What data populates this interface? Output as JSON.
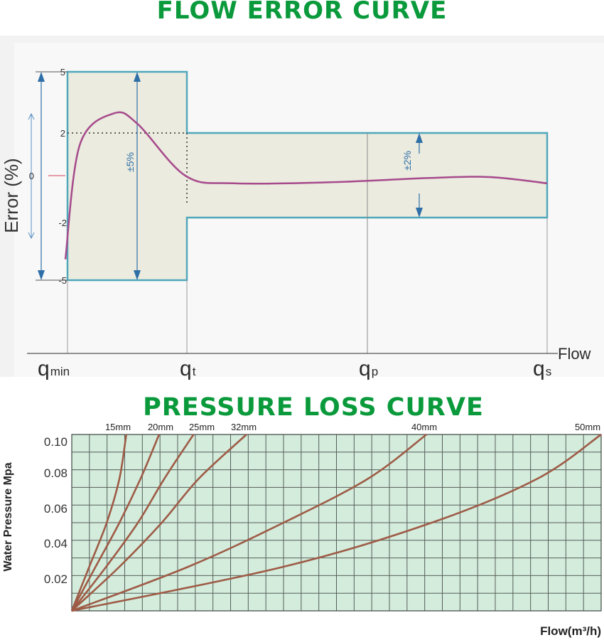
{
  "chart_data": [
    {
      "type": "line",
      "title": "FLOW ERROR CURVE",
      "ylabel": "Error (%)",
      "xlabel": "Flow",
      "ylim": [
        -5,
        5
      ],
      "y_ticks": [
        "5",
        "2",
        "0",
        "-2",
        "-5"
      ],
      "x_ticks": [
        {
          "base": "q",
          "sub": "min"
        },
        {
          "base": "q",
          "sub": "t"
        },
        {
          "base": "q",
          "sub": "p"
        },
        {
          "base": "q",
          "sub": "s"
        }
      ],
      "tolerance_zones": [
        {
          "label": "±5%",
          "from": "qmin",
          "to": "qt",
          "limits": [
            -5,
            5
          ]
        },
        {
          "label": "±2%",
          "from": "qt",
          "to": "qs",
          "limits": [
            -2,
            2
          ]
        }
      ],
      "series": [
        {
          "values": [
            {
              "x": 0.0,
              "y": -4.0
            },
            {
              "x": 0.03,
              "y": 1.5
            },
            {
              "x": 0.1,
              "y": 3.0
            },
            {
              "x": 0.15,
              "y": 2.5
            },
            {
              "x": 0.25,
              "y": 0.0
            },
            {
              "x": 0.35,
              "y": -0.35
            },
            {
              "x": 0.55,
              "y": -0.3
            },
            {
              "x": 0.75,
              "y": -0.1
            },
            {
              "x": 0.88,
              "y": -0.05
            },
            {
              "x": 1.0,
              "y": -0.35
            }
          ]
        }
      ],
      "colors": {
        "curve": "#a64a8c",
        "zone_fill": "#ebebdf",
        "zone_border": "#4fa7ba",
        "arrows": "#2f6fa8",
        "marker": "#e07a8a"
      }
    },
    {
      "type": "line",
      "title": "PRESSURE LOSS CURVE",
      "ylabel": "Water Pressure  Mpa",
      "xlabel": "Flow(m³/h)",
      "ylim": [
        0,
        0.1
      ],
      "y_ticks": [
        "0.10",
        "0.08",
        "0.06",
        "0.04",
        "0.02"
      ],
      "grid": true,
      "series": [
        {
          "name": "15mm",
          "values": [
            [
              0,
              0
            ],
            [
              0.033,
              0.025
            ],
            [
              0.066,
              0.05
            ],
            [
              0.09,
              0.075
            ],
            [
              0.103,
              0.1
            ]
          ]
        },
        {
          "name": "20mm",
          "values": [
            [
              0,
              0
            ],
            [
              0.045,
              0.025
            ],
            [
              0.09,
              0.05
            ],
            [
              0.13,
              0.075
            ],
            [
              0.165,
              0.1
            ]
          ]
        },
        {
          "name": "25mm",
          "values": [
            [
              0,
              0
            ],
            [
              0.065,
              0.025
            ],
            [
              0.125,
              0.05
            ],
            [
              0.175,
              0.075
            ],
            [
              0.23,
              0.1
            ]
          ]
        },
        {
          "name": "32mm",
          "values": [
            [
              0,
              0
            ],
            [
              0.09,
              0.025
            ],
            [
              0.17,
              0.05
            ],
            [
              0.24,
              0.075
            ],
            [
              0.33,
              0.1
            ]
          ]
        },
        {
          "name": "40mm",
          "values": [
            [
              0,
              0
            ],
            [
              0.22,
              0.025
            ],
            [
              0.4,
              0.05
            ],
            [
              0.56,
              0.075
            ],
            [
              0.67,
              0.1
            ]
          ]
        },
        {
          "name": "50mm",
          "values": [
            [
              0,
              0
            ],
            [
              0.4,
              0.025
            ],
            [
              0.68,
              0.05
            ],
            [
              0.88,
              0.075
            ],
            [
              1.0,
              0.1
            ]
          ]
        }
      ],
      "colors": {
        "curves": "#9e5b46",
        "grid_fill": "#d3ecdc",
        "grid_line": "#585e5a"
      }
    }
  ]
}
